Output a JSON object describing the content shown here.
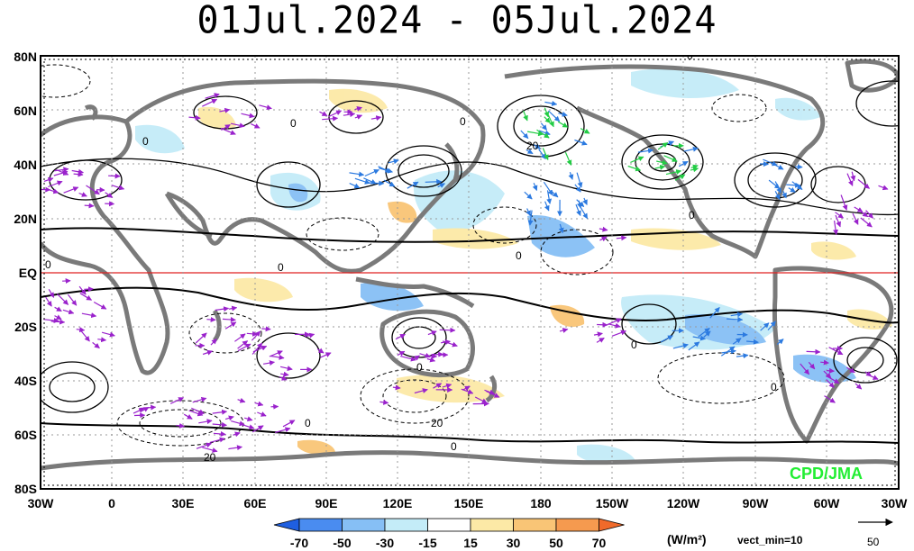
{
  "title": "01Jul.2024 - 05Jul.2024",
  "lat_labels": [
    "80N",
    "60N",
    "40N",
    "20N",
    "EQ",
    "20S",
    "40S",
    "60S",
    "80S"
  ],
  "lon_labels": [
    "30W",
    "0",
    "30E",
    "60E",
    "90E",
    "120E",
    "150E",
    "180",
    "150W",
    "120W",
    "90W",
    "60W",
    "30W"
  ],
  "contour_labels": [
    "0",
    "0",
    "0",
    "0",
    "0",
    "20",
    "0",
    "0",
    "0",
    "0",
    "0",
    "0",
    "0",
    "20",
    "0",
    "20"
  ],
  "colorbar": {
    "ticks": [
      "-70",
      "-50",
      "-30",
      "-15",
      "15",
      "30",
      "50",
      "70"
    ],
    "colors": [
      "#1f5fe0",
      "#4a8cf0",
      "#86bff5",
      "#c4ecf8",
      "#ffffff",
      "#fce9a6",
      "#f9c576",
      "#f59a4f",
      "#f06a2a"
    ],
    "units": "(W/m²)",
    "vect_min": "vect_min=10",
    "ref_vector": "50"
  },
  "credit": "CPD/JMA",
  "colors": {
    "land": "#7a7a7a",
    "contour": "#000000",
    "vector": "#9a22cc",
    "vector_strong": "#2c7ae0",
    "equator": "#e02020",
    "grid": "#9a9a9a"
  }
}
